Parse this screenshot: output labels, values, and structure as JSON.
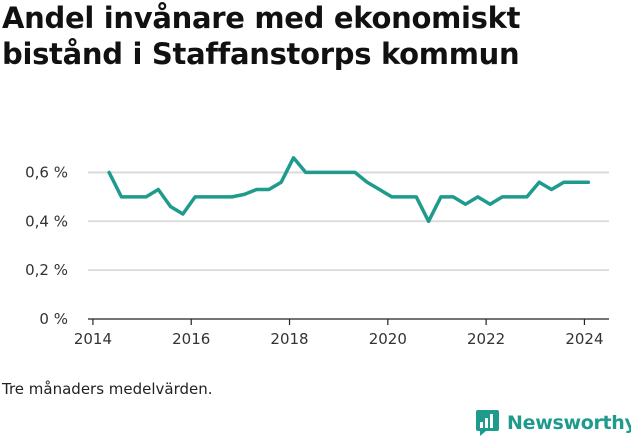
{
  "title_lines": [
    "Andel invånare med ekonomiskt",
    "bistånd i Staffanstorps kommun"
  ],
  "note": "Tre månaders medelvärden.",
  "brand": {
    "name": "Newsworthy",
    "icon": "bar-chart-speech-bubble-icon",
    "color": "#1f9b8e"
  },
  "chart_data": {
    "type": "line",
    "title": "Andel invånare med ekonomiskt bistånd i Staffanstorps kommun",
    "xlabel": "",
    "ylabel": "",
    "xlim": [
      2013.9,
      2024.5
    ],
    "ylim": [
      0,
      0.7
    ],
    "x_ticks": [
      2014,
      2016,
      2018,
      2020,
      2022,
      2024
    ],
    "y_ticks": [
      {
        "value": 0,
        "label": "0 %"
      },
      {
        "value": 0.2,
        "label": "0,2 %"
      },
      {
        "value": 0.4,
        "label": "0,4 %"
      },
      {
        "value": 0.6,
        "label": "0,6 %"
      }
    ],
    "grid": "horizontal",
    "line_color": "#1f9b8e",
    "series": [
      {
        "x": [
          2014.33,
          2014.58,
          2014.83,
          2015.08,
          2015.33,
          2015.58,
          2015.83,
          2016.08,
          2016.33,
          2016.58,
          2016.83,
          2017.08,
          2017.33,
          2017.58,
          2017.83,
          2018.08,
          2018.33,
          2018.58,
          2018.83,
          2019.08,
          2019.33,
          2019.58,
          2019.83,
          2020.08,
          2020.33,
          2020.58,
          2020.83,
          2021.08,
          2021.33,
          2021.58,
          2021.83,
          2022.08,
          2022.33,
          2022.58,
          2022.83,
          2023.08,
          2023.33,
          2023.58,
          2023.83,
          2024.08
        ],
        "values": [
          0.6,
          0.5,
          0.5,
          0.5,
          0.53,
          0.46,
          0.43,
          0.5,
          0.5,
          0.5,
          0.5,
          0.51,
          0.53,
          0.53,
          0.56,
          0.66,
          0.6,
          0.6,
          0.6,
          0.6,
          0.6,
          0.56,
          0.53,
          0.5,
          0.5,
          0.5,
          0.4,
          0.5,
          0.5,
          0.47,
          0.5,
          0.47,
          0.5,
          0.5,
          0.5,
          0.56,
          0.53,
          0.56,
          0.56,
          0.56
        ]
      }
    ]
  }
}
